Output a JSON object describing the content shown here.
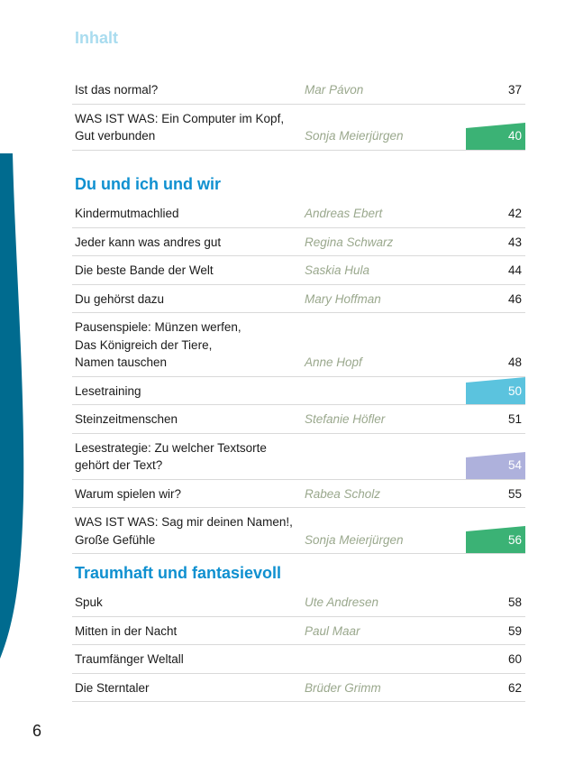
{
  "page_number": "6",
  "colors": {
    "sidebar": "#006b8f",
    "heading_pale": "#a9dcef",
    "heading_blue": "#0f90d0",
    "tab_green": "#3bb275",
    "tab_cyan": "#5bc3de",
    "tab_lavender": "#aeb1dc",
    "author": "#9aa88d"
  },
  "sections": [
    {
      "title": "Inhalt",
      "rows": [
        {
          "title": "Ist das normal?",
          "author": "Mar Pávon",
          "page": "37"
        },
        {
          "title": "WAS IST WAS: Ein Computer im Kopf,\nGut verbunden",
          "author": "Sonja Meierjürgen",
          "page": "40",
          "tab": "green"
        }
      ]
    },
    {
      "title": "Du und ich und wir",
      "rows": [
        {
          "title": "Kindermutmachlied",
          "author": "Andreas Ebert",
          "page": "42"
        },
        {
          "title": "Jeder kann was andres gut",
          "author": "Regina Schwarz",
          "page": "43"
        },
        {
          "title": "Die beste Bande der Welt",
          "author": "Saskia Hula",
          "page": "44"
        },
        {
          "title": "Du gehörst dazu",
          "author": "Mary Hoffman",
          "page": "46"
        },
        {
          "title": "Pausenspiele: Münzen werfen,\nDas Königreich der Tiere,\nNamen tauschen",
          "author": "Anne Hopf",
          "page": "48"
        },
        {
          "title": "Lesetraining",
          "author": "",
          "page": "50",
          "tab": "cyan"
        },
        {
          "title": "Steinzeitmenschen",
          "author": "Stefanie Höfler",
          "page": "51"
        },
        {
          "title": "Lesestrategie: Zu welcher Textsorte\ngehört der Text?",
          "author": "",
          "page": "54",
          "tab": "lavender"
        },
        {
          "title": "Warum spielen wir?",
          "author": "Rabea Scholz",
          "page": "55"
        },
        {
          "title": "WAS IST WAS: Sag mir deinen Namen!,\nGroße Gefühle",
          "author": "Sonja Meierjürgen",
          "page": "56",
          "tab": "green"
        }
      ]
    },
    {
      "title": "Traumhaft und fantasievoll",
      "rows": [
        {
          "title": "Spuk",
          "author": "Ute Andresen",
          "page": "58"
        },
        {
          "title": "Mitten in der Nacht",
          "author": "Paul Maar",
          "page": "59"
        },
        {
          "title": "Traumfänger Weltall",
          "author": "",
          "page": "60"
        },
        {
          "title": "Die Sterntaler",
          "author": "Brüder Grimm",
          "page": "62"
        }
      ]
    }
  ]
}
